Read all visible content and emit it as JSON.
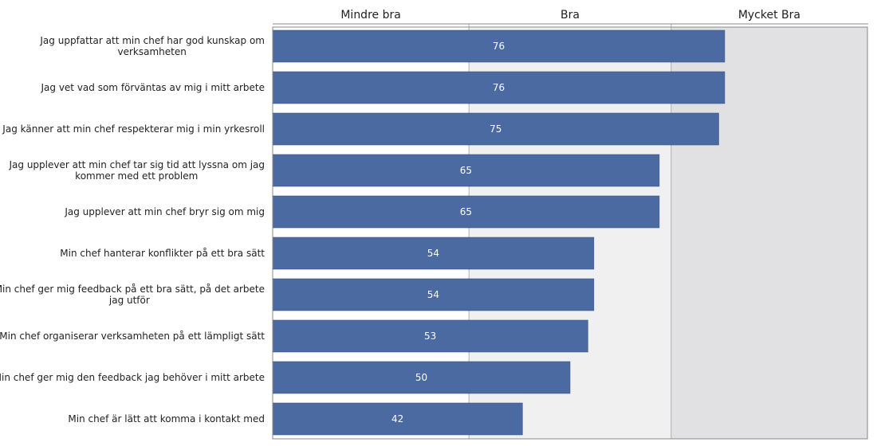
{
  "chart_data": {
    "type": "bar",
    "orientation": "horizontal",
    "xlim": [
      0,
      100
    ],
    "grid": false,
    "zones": [
      {
        "label": "Mindre bra",
        "from": 0,
        "to": 33,
        "color": "#ffffff"
      },
      {
        "label": "Bra",
        "from": 33,
        "to": 67,
        "color": "#f0f0f0"
      },
      {
        "label": "Mycket Bra",
        "from": 67,
        "to": 100,
        "color": "#e1e1e3"
      }
    ],
    "categories": [
      [
        "Jag uppfattar att min chef har god kunskap om",
        "verksamheten"
      ],
      [
        "Jag vet vad som förväntas av mig i mitt arbete"
      ],
      [
        "Jag känner att min chef respekterar mig i min yrkesroll"
      ],
      [
        "Jag upplever att min chef tar sig tid att lyssna om jag",
        "kommer med ett problem"
      ],
      [
        "Jag upplever att min chef bryr sig om mig"
      ],
      [
        "Min chef hanterar konflikter på ett bra sätt"
      ],
      [
        "Min chef ger mig feedback på ett bra sätt, på det arbete",
        "jag utför"
      ],
      [
        "Min chef organiserar verksamheten på ett lämpligt sätt"
      ],
      [
        "Min chef ger mig den feedback jag behöver i mitt arbete"
      ],
      [
        "Min chef är lätt att komma i kontakt med"
      ]
    ],
    "values": [
      76,
      76,
      75,
      65,
      65,
      54,
      54,
      53,
      50,
      42
    ],
    "bar_color": "#4a6aa1",
    "axis_color": "#888888"
  }
}
